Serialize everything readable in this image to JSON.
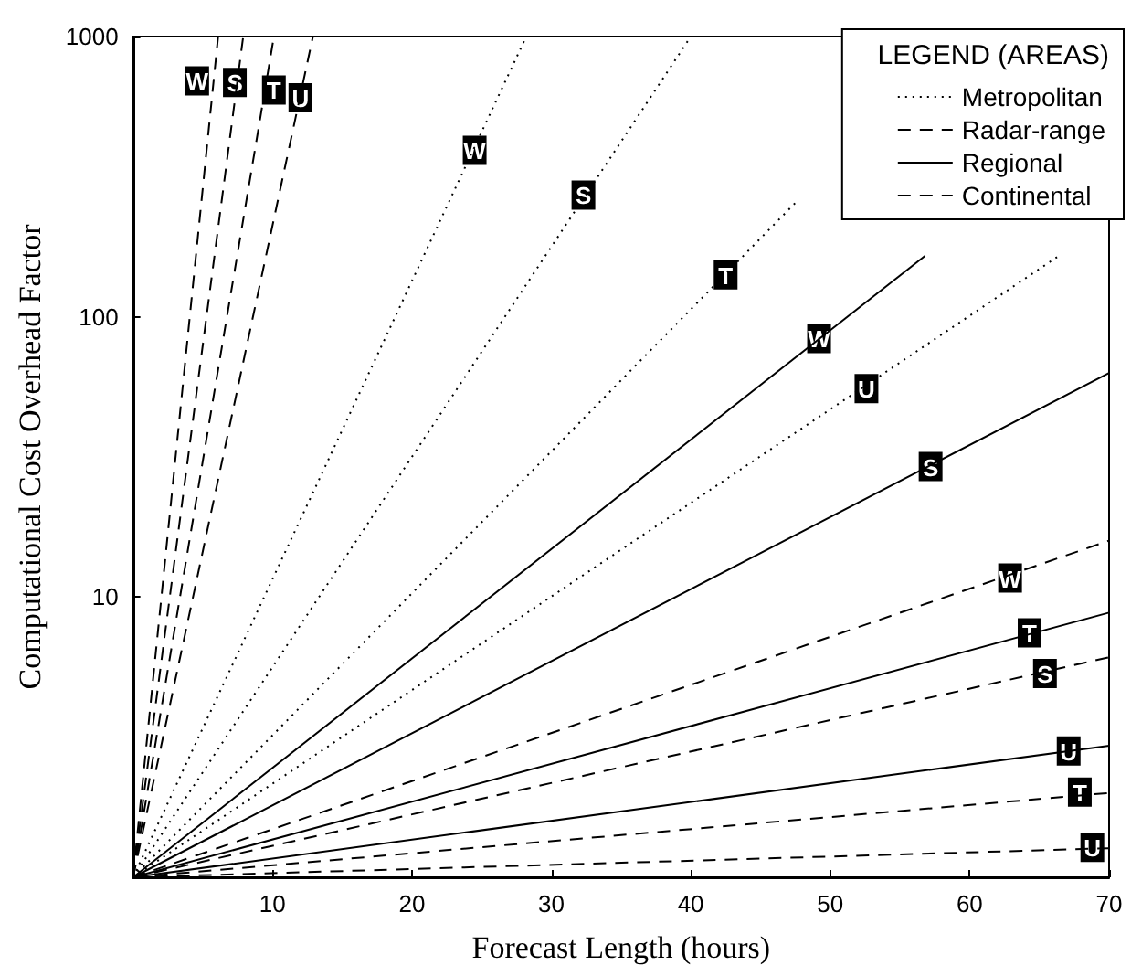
{
  "chart_data": {
    "type": "line",
    "xlabel": "Forecast Length (hours)",
    "ylabel": "Computational Cost Overhead Factor",
    "legend_title": "LEGEND (AREAS)",
    "legend": "top right",
    "log": true,
    "marker": "none",
    "xlim": [
      0,
      70
    ],
    "xticks": [
      10,
      20,
      30,
      40,
      50,
      60,
      70
    ],
    "ylim": [
      1,
      1000
    ],
    "yticks": [
      {
        "value": 1,
        "label": null
      },
      10,
      100,
      1000
    ],
    "series": [
      {
        "name": "Metropolitan",
        "color": "#000000",
        "line_style": "dotted",
        "x": [
          0,
          28.2
        ],
        "values": [
          1,
          1000
        ]
      },
      {
        "color": "#000000",
        "line_style": "dotted",
        "x": [
          0,
          40
        ],
        "values": [
          1,
          1000
        ]
      },
      {
        "color": "#000000",
        "line_style": "dotted",
        "x": [
          0,
          47.5
        ],
        "values": [
          1,
          255
        ]
      },
      {
        "color": "#000000",
        "line_style": "dotted",
        "x": [
          0,
          66.4
        ],
        "values": [
          1,
          165
        ]
      },
      {
        "name": "Radar-range",
        "color": "#000000",
        "line_style": "dashed",
        "x": [
          0,
          6.1
        ],
        "values": [
          1,
          1000
        ]
      },
      {
        "color": "#000000",
        "line_style": "dashed",
        "x": [
          0,
          7.9
        ],
        "values": [
          1,
          1000
        ]
      },
      {
        "color": "#000000",
        "line_style": "dashed",
        "x": [
          0,
          10.1
        ],
        "values": [
          1,
          1000
        ]
      },
      {
        "color": "#000000",
        "line_style": "dashed",
        "x": [
          0,
          12.9
        ],
        "values": [
          1,
          1000
        ]
      },
      {
        "name": "Regional",
        "color": "#000000",
        "line_style": "solid",
        "x": [
          0,
          56.8
        ],
        "values": [
          1,
          165
        ]
      },
      {
        "color": "#000000",
        "line_style": "solid",
        "x": [
          0,
          70
        ],
        "values": [
          1,
          63
        ]
      },
      {
        "color": "#000000",
        "line_style": "solid",
        "x": [
          0,
          70
        ],
        "values": [
          1,
          8.8
        ]
      },
      {
        "color": "#000000",
        "line_style": "solid",
        "x": [
          0,
          70
        ],
        "values": [
          1,
          2.95
        ]
      },
      {
        "name": "Continental",
        "color": "#000000",
        "line_style": "dashed",
        "x": [
          0,
          70
        ],
        "values": [
          1,
          15.9
        ]
      },
      {
        "color": "#000000",
        "line_style": "dashed",
        "x": [
          0,
          70
        ],
        "values": [
          1,
          6.1
        ]
      },
      {
        "color": "#000000",
        "line_style": "dashed",
        "x": [
          0,
          70
        ],
        "values": [
          1,
          2.0
        ]
      },
      {
        "color": "#000000",
        "line_style": "dashed",
        "x": [
          0,
          70
        ],
        "values": [
          1,
          1.27
        ]
      }
    ],
    "annotations": [
      {
        "text": "W",
        "x": 4.6,
        "y": 690
      },
      {
        "text": "S",
        "x": 7.3,
        "y": 680
      },
      {
        "text": "T",
        "x": 10.1,
        "y": 640
      },
      {
        "text": "U",
        "x": 12.0,
        "y": 600
      },
      {
        "text": "W",
        "x": 24.5,
        "y": 390
      },
      {
        "text": "S",
        "x": 32.3,
        "y": 270
      },
      {
        "text": "T",
        "x": 42.5,
        "y": 140
      },
      {
        "text": "U",
        "x": 52.6,
        "y": 55
      },
      {
        "text": "W",
        "x": 49.2,
        "y": 83
      },
      {
        "text": "S",
        "x": 57.2,
        "y": 29
      },
      {
        "text": "T",
        "x": 64.3,
        "y": 7.4
      },
      {
        "text": "U",
        "x": 67.1,
        "y": 2.8
      },
      {
        "text": "W",
        "x": 62.9,
        "y": 11.6
      },
      {
        "text": "S",
        "x": 65.4,
        "y": 5.3
      },
      {
        "text": "T",
        "x": 67.9,
        "y": 2.0
      },
      {
        "text": "U",
        "x": 68.8,
        "y": 1.27
      }
    ]
  }
}
